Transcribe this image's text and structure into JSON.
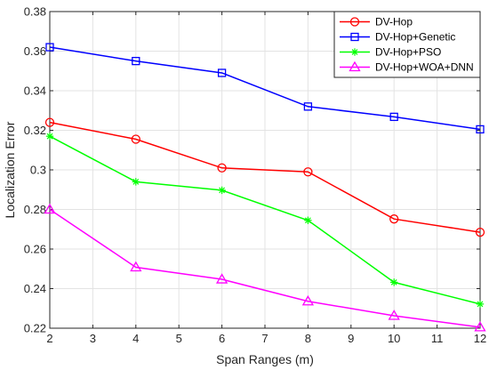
{
  "chart_data": {
    "type": "line",
    "xlabel": "Span Ranges (m)",
    "ylabel": "Localization Error",
    "xlim": [
      2,
      12
    ],
    "ylim": [
      0.22,
      0.38
    ],
    "xticks": [
      2,
      3,
      4,
      5,
      6,
      7,
      8,
      9,
      10,
      11,
      12
    ],
    "xtick_labels": [
      "2",
      "3",
      "4",
      "5",
      "6",
      "7",
      "8",
      "9",
      "10",
      "11",
      "12"
    ],
    "yticks": [
      0.22,
      0.24,
      0.26,
      0.28,
      0.3,
      0.32,
      0.34,
      0.36,
      0.38
    ],
    "ytick_labels": [
      "0.22",
      "0.24",
      "0.26",
      "0.28",
      "0.3",
      "0.32",
      "0.34",
      "0.36",
      "0.38"
    ],
    "grid": true,
    "legend_position": "top-right",
    "x": [
      2,
      4,
      6,
      8,
      10,
      12
    ],
    "series": [
      {
        "name": "DV-Hop",
        "color": "#ff0000",
        "marker": "circle",
        "values": [
          0.324,
          0.3155,
          0.301,
          0.299,
          0.2752,
          0.2685
        ]
      },
      {
        "name": "DV-Hop+Genetic",
        "color": "#0000ff",
        "marker": "square",
        "values": [
          0.362,
          0.355,
          0.349,
          0.332,
          0.3268,
          0.3205
        ]
      },
      {
        "name": "DV-Hop+PSO",
        "color": "#00ff00",
        "marker": "asterisk",
        "values": [
          0.317,
          0.294,
          0.2897,
          0.2745,
          0.2432,
          0.2322
        ]
      },
      {
        "name": "DV-Hop+WOA+DNN",
        "color": "#ff00ff",
        "marker": "triangle",
        "values": [
          0.28,
          0.2508,
          0.2447,
          0.2336,
          0.2263,
          0.2205
        ]
      }
    ]
  }
}
